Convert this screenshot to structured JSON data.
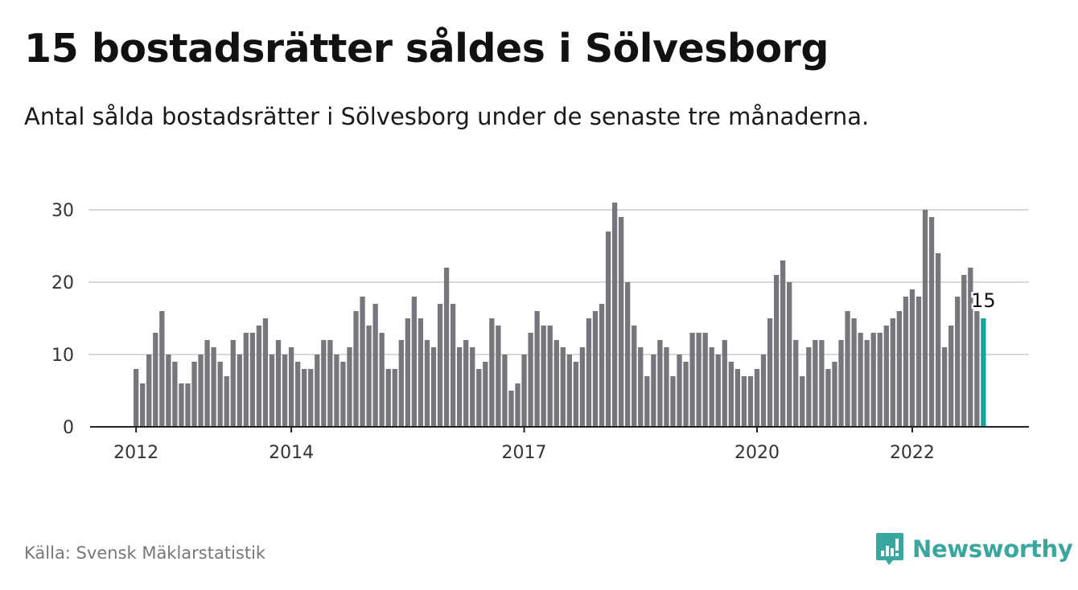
{
  "header": {
    "title": "15 bostadsrätter såldes i Sölvesborg",
    "subtitle": "Antal sålda bostadsrätter i Sölvesborg under de senaste tre månaderna."
  },
  "footer": {
    "source": "Källa: Svensk Mäklarstatistik",
    "brand": "Newsworthy",
    "brand_icon": "chart-bubble-icon"
  },
  "colors": {
    "bar": "#76767d",
    "highlight": "#16a39c",
    "grid": "#d9d9d9",
    "axis": "#222222",
    "brand": "#3aa6a0"
  },
  "chart_data": {
    "type": "bar",
    "title": "15 bostadsrätter såldes i Sölvesborg",
    "subtitle": "Antal sålda bostadsrätter i Sölvesborg under de senaste tre månaderna.",
    "xlabel": "",
    "ylabel": "",
    "ylim": [
      0,
      32
    ],
    "yticks": [
      0,
      10,
      20,
      30
    ],
    "xtick_labels": [
      {
        "label": "2012",
        "index": 0
      },
      {
        "label": "2014",
        "index": 24
      },
      {
        "label": "2017",
        "index": 60
      },
      {
        "label": "2020",
        "index": 96
      },
      {
        "label": "2022",
        "index": 120
      }
    ],
    "grid": true,
    "highlight_index": 131,
    "highlight_label": "15",
    "values": [
      8,
      6,
      10,
      13,
      16,
      10,
      9,
      6,
      6,
      9,
      10,
      12,
      11,
      9,
      7,
      12,
      10,
      13,
      13,
      14,
      15,
      10,
      12,
      10,
      11,
      9,
      8,
      8,
      10,
      12,
      12,
      10,
      9,
      11,
      16,
      18,
      14,
      17,
      13,
      8,
      8,
      12,
      15,
      18,
      15,
      12,
      11,
      17,
      22,
      17,
      11,
      12,
      11,
      8,
      9,
      15,
      14,
      10,
      5,
      6,
      10,
      13,
      16,
      14,
      14,
      12,
      11,
      10,
      9,
      11,
      15,
      16,
      17,
      27,
      31,
      29,
      20,
      14,
      11,
      7,
      10,
      12,
      11,
      7,
      10,
      9,
      13,
      13,
      13,
      11,
      10,
      12,
      9,
      8,
      7,
      7,
      8,
      10,
      15,
      21,
      23,
      20,
      12,
      7,
      11,
      12,
      12,
      8,
      9,
      12,
      16,
      15,
      13,
      12,
      13,
      13,
      14,
      15,
      16,
      18,
      19,
      18,
      30,
      29,
      24,
      11,
      14,
      18,
      21,
      22,
      16,
      15
    ]
  }
}
